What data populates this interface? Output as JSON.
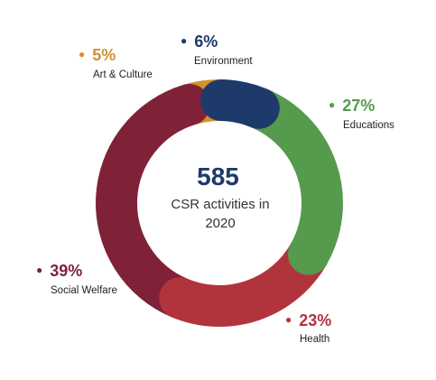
{
  "chart_data": {
    "type": "pie",
    "center": {
      "total": "585",
      "caption": "CSR activities in 2020"
    },
    "slices": [
      {
        "label": "Environment",
        "value": 6,
        "display": "6%",
        "color": "#1e3a6b"
      },
      {
        "label": "Educations",
        "value": 27,
        "display": "27%",
        "color": "#569a4e"
      },
      {
        "label": "Health",
        "value": 23,
        "display": "23%",
        "color": "#b1343d"
      },
      {
        "label": "Social Welfare",
        "value": 39,
        "display": "39%",
        "color": "#7f2238"
      },
      {
        "label": "Art & Culture",
        "value": 5,
        "display": "5%",
        "color": "#d3902e"
      }
    ]
  }
}
